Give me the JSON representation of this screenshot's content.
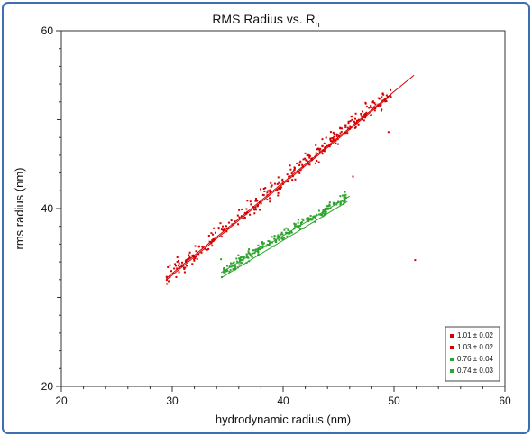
{
  "chart_data": {
    "type": "scatter",
    "title": "RMS Radius vs. R",
    "title_subscript": "h",
    "xlabel": "hydrodynamic radius (nm)",
    "ylabel": "rms radius (nm)",
    "xlim": [
      20,
      60
    ],
    "ylim": [
      20,
      60
    ],
    "xticks": [
      "20",
      "30",
      "40",
      "50",
      "60"
    ],
    "yticks": [
      "20",
      "40",
      "60"
    ],
    "legend_position": "bottom-right",
    "series": [
      {
        "name": "1.01 ± 0.02",
        "color": "#d40000",
        "fit": [
          [
            29.5,
            32.0
          ],
          [
            49.5,
            52.5
          ]
        ]
      },
      {
        "name": "1.03 ± 0.02",
        "color": "#d40000",
        "fit": [
          [
            29.5,
            32.2
          ],
          [
            51.8,
            55.0
          ]
        ]
      },
      {
        "name": "0.76 ± 0.04",
        "color": "#2ea32e",
        "fit": [
          [
            34.4,
            32.8
          ],
          [
            46.0,
            41.4
          ]
        ]
      },
      {
        "name": "0.74 ± 0.03",
        "color": "#2ea32e",
        "fit": [
          [
            34.4,
            32.2
          ],
          [
            45.8,
            40.8
          ]
        ]
      }
    ],
    "point_clouds": [
      {
        "color": "#d40000",
        "x_range": [
          29.5,
          49.8
        ],
        "slope": 1.02,
        "intercept": 2.3,
        "spread": 1.4,
        "count": 330
      },
      {
        "color": "#2ea32e",
        "x_range": [
          34.4,
          45.8
        ],
        "slope": 0.75,
        "intercept": 7.0,
        "spread": 0.9,
        "count": 240
      }
    ],
    "outliers": [
      {
        "x": 51.9,
        "y": 34.2,
        "color": "#d40000"
      },
      {
        "x": 46.3,
        "y": 43.6,
        "color": "#d40000"
      },
      {
        "x": 49.5,
        "y": 48.6,
        "color": "#d40000"
      },
      {
        "x": 34.4,
        "y": 34.3,
        "color": "#2ea32e"
      }
    ]
  }
}
